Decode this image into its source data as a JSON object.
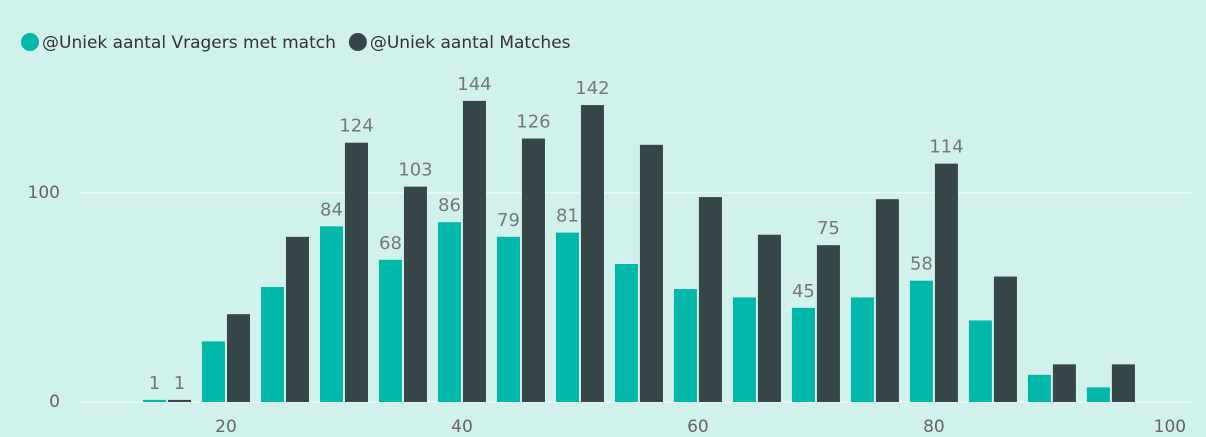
{
  "chart_data": {
    "type": "bar",
    "x": [
      15,
      20,
      25,
      30,
      35,
      40,
      45,
      50,
      55,
      60,
      65,
      70,
      75,
      80,
      85,
      90,
      95
    ],
    "series": [
      {
        "name": "@Uniek aantal Vragers met match",
        "color": "#01b8aa",
        "values": [
          1,
          29,
          55,
          84,
          68,
          86,
          79,
          81,
          66,
          54,
          50,
          45,
          50,
          58,
          39,
          13,
          7
        ],
        "value_labels": [
          1,
          null,
          null,
          84,
          68,
          86,
          79,
          81,
          null,
          null,
          null,
          45,
          null,
          58,
          null,
          null,
          null
        ]
      },
      {
        "name": "@Uniek aantal Matches",
        "color": "#374649",
        "values": [
          1,
          42,
          79,
          124,
          103,
          144,
          126,
          142,
          123,
          98,
          80,
          75,
          97,
          114,
          60,
          18,
          18
        ],
        "value_labels": [
          1,
          null,
          null,
          124,
          103,
          144,
          126,
          142,
          null,
          null,
          null,
          75,
          null,
          114,
          null,
          null,
          null
        ]
      }
    ],
    "bin_width": 5,
    "xlim": [
      8,
      102
    ],
    "xticks": [
      20,
      40,
      60,
      80,
      100
    ],
    "ylim": [
      0,
      154
    ],
    "yticks": [
      0,
      100
    ],
    "grid": true,
    "legend": "top-left"
  }
}
